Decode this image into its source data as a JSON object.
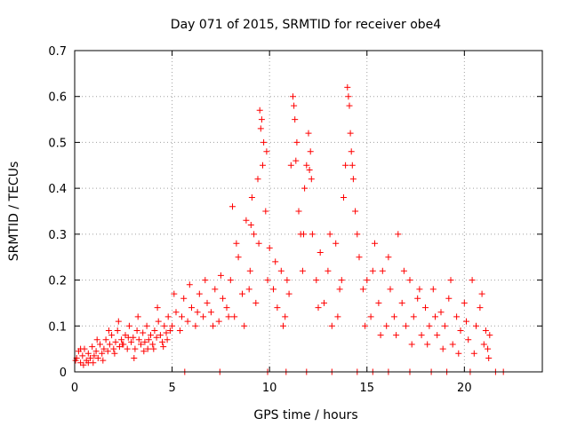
{
  "chart_data": {
    "type": "scatter",
    "title": "Day 071 of 2015, SRMTID for receiver obe4",
    "xlabel": "GPS time / hours",
    "ylabel": "SRMTID / TECUs",
    "xlim": [
      0,
      24
    ],
    "ylim": [
      0,
      0.7
    ],
    "xticks": [
      0,
      5,
      10,
      15,
      20
    ],
    "yticks": [
      0,
      0.1,
      0.2,
      0.3,
      0.4,
      0.5,
      0.6,
      0.7
    ],
    "xtick_labels": [
      "0",
      "5",
      "10",
      "15",
      "20"
    ],
    "ytick_labels": [
      "0",
      "0.1",
      "0.2",
      "0.3",
      "0.4",
      "0.5",
      "0.6",
      "0.7"
    ],
    "grid": true,
    "marker": "+",
    "color": "#ff0000",
    "series": [
      {
        "name": "obe4",
        "points": [
          [
            0.1,
            0.03
          ],
          [
            0.2,
            0.045
          ],
          [
            0.3,
            0.02
          ],
          [
            0.4,
            0.035
          ],
          [
            0.5,
            0.05
          ],
          [
            0.6,
            0.025
          ],
          [
            0.7,
            0.04
          ],
          [
            0.8,
            0.03
          ],
          [
            0.9,
            0.055
          ],
          [
            1.0,
            0.035
          ],
          [
            1.1,
            0.045
          ],
          [
            1.2,
            0.03
          ],
          [
            1.3,
            0.06
          ],
          [
            1.4,
            0.04
          ],
          [
            1.5,
            0.05
          ],
          [
            1.6,
            0.07
          ],
          [
            1.7,
            0.045
          ],
          [
            1.8,
            0.06
          ],
          [
            1.9,
            0.08
          ],
          [
            2.0,
            0.05
          ],
          [
            2.1,
            0.065
          ],
          [
            2.2,
            0.09
          ],
          [
            2.3,
            0.055
          ],
          [
            2.4,
            0.07
          ],
          [
            2.5,
            0.06
          ],
          [
            2.6,
            0.08
          ],
          [
            2.7,
            0.05
          ],
          [
            2.8,
            0.1
          ],
          [
            2.9,
            0.065
          ],
          [
            3.0,
            0.075
          ],
          [
            3.1,
            0.05
          ],
          [
            3.2,
            0.09
          ],
          [
            3.3,
            0.07
          ],
          [
            3.4,
            0.06
          ],
          [
            3.5,
            0.085
          ],
          [
            3.6,
            0.065
          ],
          [
            3.7,
            0.1
          ],
          [
            3.8,
            0.07
          ],
          [
            3.9,
            0.08
          ],
          [
            4.0,
            0.06
          ],
          [
            4.1,
            0.09
          ],
          [
            4.2,
            0.075
          ],
          [
            4.3,
            0.11
          ],
          [
            4.4,
            0.08
          ],
          [
            4.5,
            0.065
          ],
          [
            4.6,
            0.1
          ],
          [
            4.7,
            0.085
          ],
          [
            4.8,
            0.12
          ],
          [
            4.9,
            0.09
          ],
          [
            5.0,
            0.1
          ],
          [
            5.2,
            0.13
          ],
          [
            5.4,
            0.09
          ],
          [
            5.6,
            0.16
          ],
          [
            5.8,
            0.11
          ],
          [
            6.0,
            0.14
          ],
          [
            6.2,
            0.1
          ],
          [
            6.4,
            0.17
          ],
          [
            6.6,
            0.12
          ],
          [
            6.8,
            0.15
          ],
          [
            7.0,
            0.13
          ],
          [
            7.2,
            0.18
          ],
          [
            7.4,
            0.11
          ],
          [
            7.6,
            0.16
          ],
          [
            7.8,
            0.14
          ],
          [
            8.0,
            0.2
          ],
          [
            8.1,
            0.36
          ],
          [
            8.2,
            0.12
          ],
          [
            8.4,
            0.25
          ],
          [
            8.6,
            0.17
          ],
          [
            8.8,
            0.33
          ],
          [
            9.0,
            0.22
          ],
          [
            9.1,
            0.38
          ],
          [
            9.2,
            0.3
          ],
          [
            9.3,
            0.15
          ],
          [
            9.4,
            0.42
          ],
          [
            9.5,
            0.57
          ],
          [
            9.6,
            0.55
          ],
          [
            9.7,
            0.5
          ],
          [
            9.8,
            0.35
          ],
          [
            9.9,
            0.2
          ],
          [
            10.0,
            0.27
          ],
          [
            10.2,
            0.18
          ],
          [
            10.4,
            0.14
          ],
          [
            10.6,
            0.22
          ],
          [
            10.8,
            0.12
          ],
          [
            11.0,
            0.17
          ],
          [
            11.1,
            0.45
          ],
          [
            11.2,
            0.6
          ],
          [
            11.3,
            0.55
          ],
          [
            11.4,
            0.5
          ],
          [
            11.5,
            0.35
          ],
          [
            11.6,
            0.3
          ],
          [
            11.7,
            0.22
          ],
          [
            11.8,
            0.4
          ],
          [
            11.9,
            0.45
          ],
          [
            12.0,
            0.52
          ],
          [
            12.1,
            0.48
          ],
          [
            12.2,
            0.3
          ],
          [
            12.4,
            0.2
          ],
          [
            12.6,
            0.26
          ],
          [
            12.8,
            0.15
          ],
          [
            13.0,
            0.22
          ],
          [
            13.2,
            0.1
          ],
          [
            13.4,
            0.28
          ],
          [
            13.6,
            0.18
          ],
          [
            13.8,
            0.38
          ],
          [
            14.0,
            0.62
          ],
          [
            14.1,
            0.58
          ],
          [
            14.2,
            0.48
          ],
          [
            14.3,
            0.42
          ],
          [
            14.4,
            0.35
          ],
          [
            14.6,
            0.25
          ],
          [
            14.8,
            0.18
          ],
          [
            15.0,
            0.2
          ],
          [
            15.2,
            0.12
          ],
          [
            15.4,
            0.28
          ],
          [
            15.6,
            0.15
          ],
          [
            15.8,
            0.22
          ],
          [
            16.0,
            0.1
          ],
          [
            16.2,
            0.18
          ],
          [
            16.4,
            0.12
          ],
          [
            16.6,
            0.3
          ],
          [
            16.8,
            0.15
          ],
          [
            17.0,
            0.1
          ],
          [
            17.2,
            0.2
          ],
          [
            17.4,
            0.12
          ],
          [
            17.6,
            0.16
          ],
          [
            17.8,
            0.08
          ],
          [
            18.0,
            0.14
          ],
          [
            18.2,
            0.1
          ],
          [
            18.4,
            0.18
          ],
          [
            18.6,
            0.08
          ],
          [
            18.8,
            0.13
          ],
          [
            19.0,
            0.1
          ],
          [
            19.2,
            0.16
          ],
          [
            19.4,
            0.06
          ],
          [
            19.6,
            0.12
          ],
          [
            19.8,
            0.09
          ],
          [
            20.0,
            0.15
          ],
          [
            20.2,
            0.07
          ],
          [
            20.4,
            0.2
          ],
          [
            20.6,
            0.1
          ],
          [
            20.8,
            0.14
          ],
          [
            21.0,
            0.06
          ],
          [
            21.1,
            0.09
          ],
          [
            21.2,
            0.05
          ],
          [
            21.3,
            0.08
          ],
          [
            0.3,
            0.05
          ],
          [
            0.7,
            0.02
          ],
          [
            1.15,
            0.07
          ],
          [
            1.75,
            0.09
          ],
          [
            2.25,
            0.11
          ],
          [
            2.75,
            0.075
          ],
          [
            3.25,
            0.12
          ],
          [
            3.75,
            0.05
          ],
          [
            4.25,
            0.14
          ],
          [
            4.75,
            0.07
          ],
          [
            5.1,
            0.17
          ],
          [
            5.5,
            0.12
          ],
          [
            5.9,
            0.19
          ],
          [
            6.3,
            0.13
          ],
          [
            6.7,
            0.2
          ],
          [
            7.1,
            0.1
          ],
          [
            7.5,
            0.21
          ],
          [
            7.9,
            0.12
          ],
          [
            8.3,
            0.28
          ],
          [
            8.7,
            0.1
          ],
          [
            9.05,
            0.32
          ],
          [
            9.45,
            0.28
          ],
          [
            9.85,
            0.48
          ],
          [
            10.3,
            0.24
          ],
          [
            10.7,
            0.1
          ],
          [
            11.25,
            0.58
          ],
          [
            11.75,
            0.3
          ],
          [
            12.15,
            0.42
          ],
          [
            12.5,
            0.14
          ],
          [
            13.1,
            0.3
          ],
          [
            13.5,
            0.12
          ],
          [
            13.9,
            0.45
          ],
          [
            14.15,
            0.52
          ],
          [
            14.5,
            0.3
          ],
          [
            14.9,
            0.1
          ],
          [
            15.3,
            0.22
          ],
          [
            15.7,
            0.08
          ],
          [
            16.1,
            0.25
          ],
          [
            16.5,
            0.08
          ],
          [
            16.9,
            0.22
          ],
          [
            17.3,
            0.06
          ],
          [
            17.7,
            0.18
          ],
          [
            18.1,
            0.06
          ],
          [
            18.5,
            0.12
          ],
          [
            18.9,
            0.05
          ],
          [
            19.3,
            0.2
          ],
          [
            19.7,
            0.04
          ],
          [
            20.1,
            0.11
          ],
          [
            20.5,
            0.04
          ],
          [
            20.9,
            0.17
          ],
          [
            21.25,
            0.03
          ],
          [
            9.55,
            0.53
          ],
          [
            9.65,
            0.45
          ],
          [
            11.35,
            0.46
          ],
          [
            12.05,
            0.44
          ],
          [
            14.05,
            0.6
          ],
          [
            14.25,
            0.45
          ],
          [
            8.95,
            0.18
          ],
          [
            10.9,
            0.2
          ],
          [
            13.7,
            0.2
          ],
          [
            2.05,
            0.04
          ],
          [
            2.45,
            0.06
          ],
          [
            3.05,
            0.03
          ],
          [
            3.55,
            0.045
          ],
          [
            4.05,
            0.05
          ],
          [
            4.55,
            0.055
          ],
          [
            0.05,
            0.025
          ],
          [
            0.45,
            0.015
          ],
          [
            0.95,
            0.02
          ],
          [
            1.45,
            0.025
          ],
          [
            5.65,
            0.0
          ],
          [
            7.45,
            0.0
          ],
          [
            9.9,
            0.0
          ],
          [
            10.85,
            0.0
          ],
          [
            11.9,
            0.0
          ],
          [
            13.2,
            0.0
          ],
          [
            14.5,
            0.0
          ],
          [
            15.3,
            0.0
          ],
          [
            16.1,
            0.0
          ],
          [
            17.2,
            0.0
          ],
          [
            18.3,
            0.0
          ],
          [
            19.1,
            0.0
          ],
          [
            20.3,
            0.0
          ],
          [
            21.6,
            0.0
          ],
          [
            22.0,
            0.0
          ]
        ]
      }
    ]
  }
}
